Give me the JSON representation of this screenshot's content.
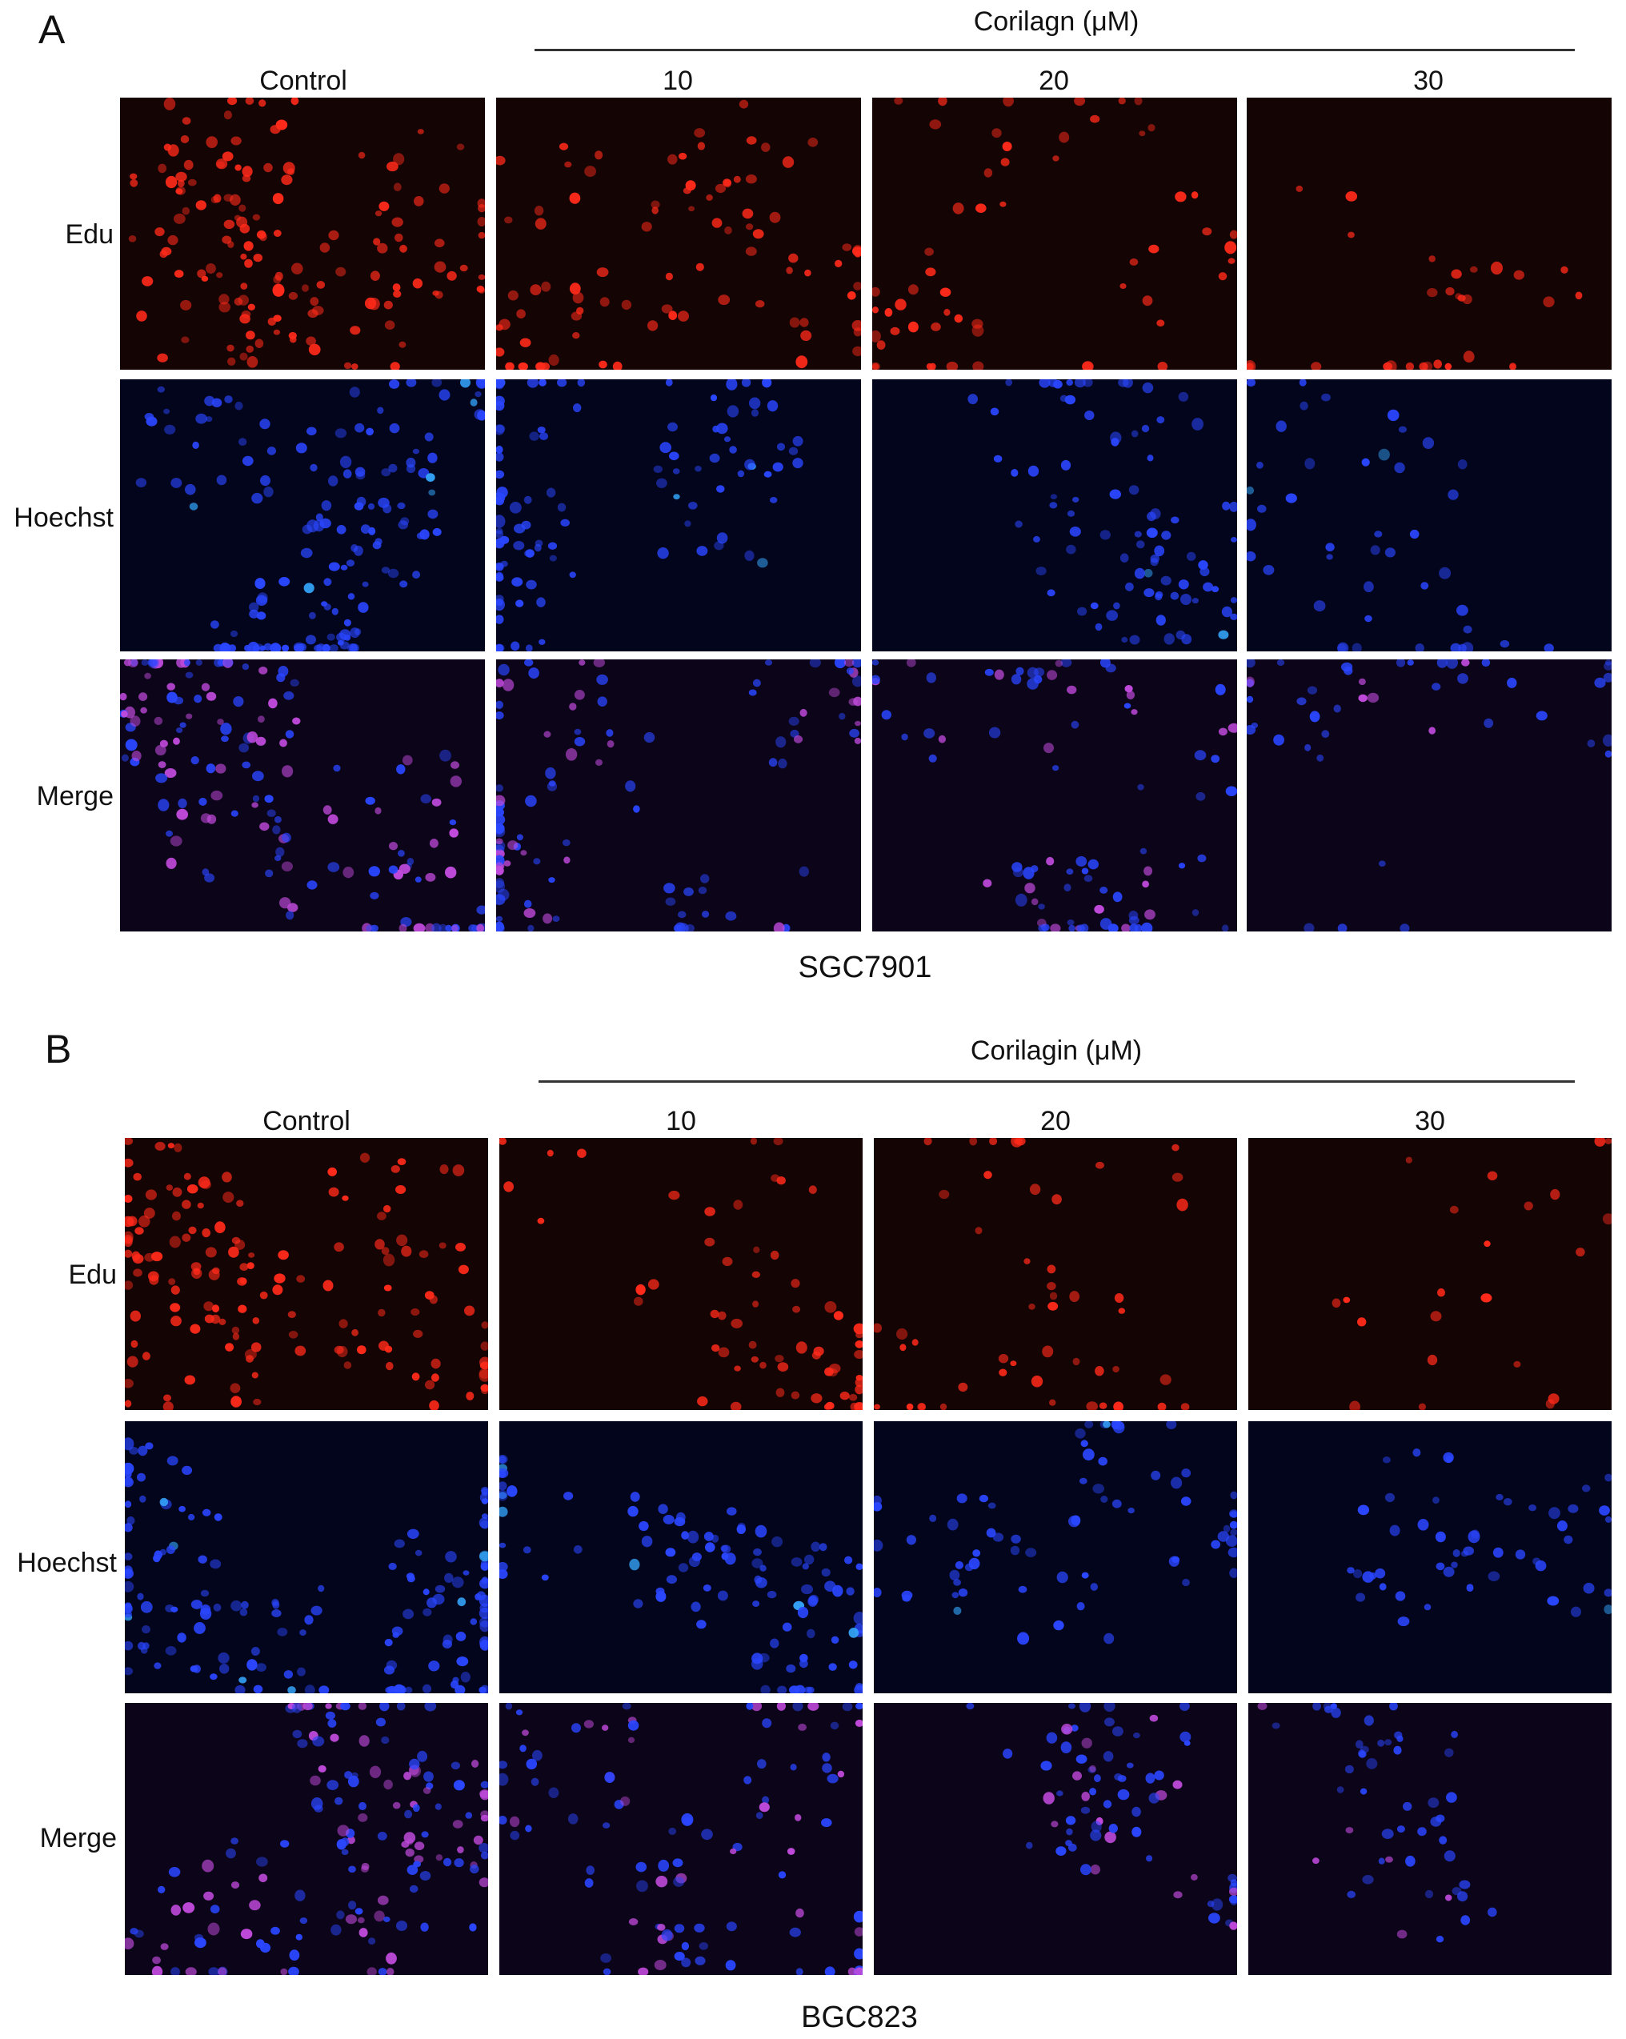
{
  "panels": [
    {
      "id": "A",
      "label": "A",
      "treatment": "Corilagn (μM)",
      "columns": [
        "Control",
        "10",
        "20",
        "30"
      ],
      "rows": [
        "Edu",
        "Hoechst",
        "Merge"
      ],
      "cell_line": "SGC7901"
    },
    {
      "id": "B",
      "label": "B",
      "treatment": "Corilagin (μM)",
      "columns": [
        "Control",
        "10",
        "20",
        "30"
      ],
      "rows": [
        "Edu",
        "Hoechst",
        "Merge"
      ],
      "cell_line": "BGC823"
    }
  ],
  "colors": {
    "edu_stain": "#ff2a1a",
    "hoechst_stain": "#2a46ff",
    "merge_stain": "#c04adc",
    "tile_background": "#0a0208"
  }
}
